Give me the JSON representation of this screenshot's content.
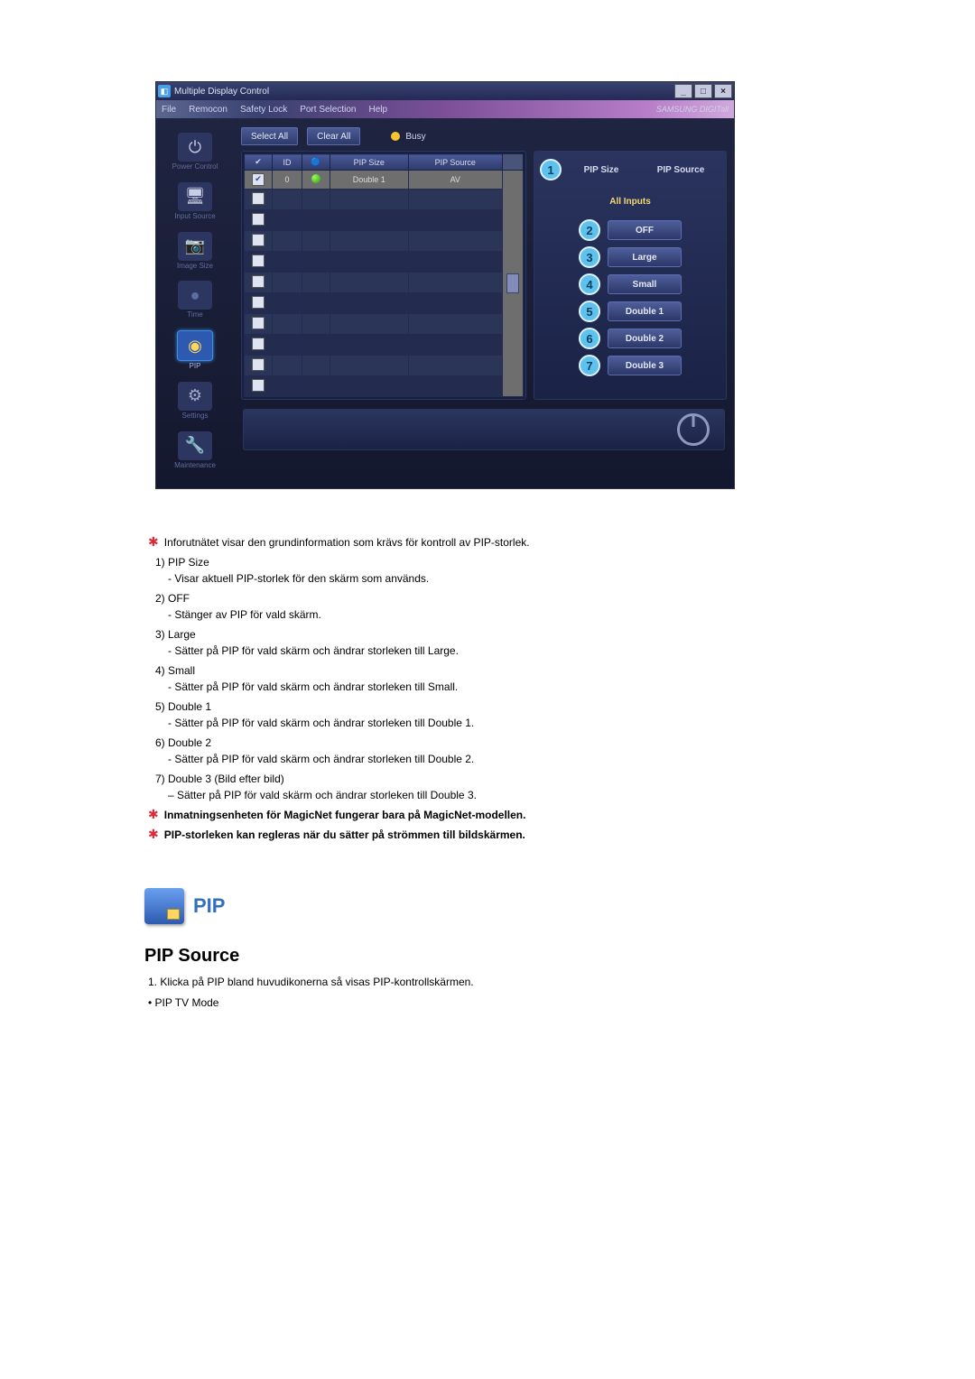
{
  "window": {
    "title": "Multiple Display Control",
    "menu": [
      "File",
      "Remocon",
      "Safety Lock",
      "Port Selection",
      "Help"
    ],
    "brand": "SAMSUNG DIGITall"
  },
  "sidebar": {
    "items": [
      {
        "label": "Power Control",
        "glyph": "⏻",
        "glyph_color": "#c6cde4",
        "bg": "#2d3660",
        "active": false
      },
      {
        "label": "Input Source",
        "glyph": "🖥",
        "glyph_color": "#c6cde4",
        "bg": "#2d3660",
        "active": false
      },
      {
        "label": "Image Size",
        "glyph": "📷",
        "glyph_color": "#7fb6e4",
        "bg": "#2d3660",
        "active": false
      },
      {
        "label": "Time",
        "glyph": "●",
        "glyph_color": "#5e6ea0",
        "bg": "#2d3660",
        "active": false
      },
      {
        "label": "PIP",
        "glyph": "◉",
        "glyph_color": "#ffd760",
        "bg": "#2d5ab0",
        "active": true
      },
      {
        "label": "Settings",
        "glyph": "⚙",
        "glyph_color": "#a0aacc",
        "bg": "#2d3660",
        "active": false
      },
      {
        "label": "Maintenance",
        "glyph": "🔧",
        "glyph_color": "#a0aacc",
        "bg": "#2d3660",
        "active": false
      }
    ]
  },
  "toolbar": {
    "select_all": "Select All",
    "clear_all": "Clear All",
    "busy_label": "Busy",
    "busy_color": "#f5c430"
  },
  "grid": {
    "headers": {
      "check": "✔",
      "id": "ID",
      "status": "",
      "pip_size": "PIP Size",
      "pip_source": "PIP Source"
    },
    "row": {
      "checked": true,
      "id": "0",
      "status_dot": true,
      "pip_size": "Double 1",
      "pip_source": "AV"
    },
    "empty_rows": 10
  },
  "right_panel": {
    "header": {
      "badge": "1",
      "left_label": "PIP Size",
      "right_label": "PIP Source"
    },
    "all_inputs": "All Inputs",
    "options": [
      {
        "badge": "2",
        "label": "OFF"
      },
      {
        "badge": "3",
        "label": "Large"
      },
      {
        "badge": "4",
        "label": "Small"
      },
      {
        "badge": "5",
        "label": "Double 1"
      },
      {
        "badge": "6",
        "label": "Double 2"
      },
      {
        "badge": "7",
        "label": "Double 3"
      }
    ]
  },
  "notes": {
    "intro": "Inforutnätet visar den grundinformation som krävs för kontroll av PIP-storlek.",
    "list": [
      {
        "n": "1)",
        "title": "PIP Size",
        "body": "- Visar aktuell PIP-storlek för den skärm som används."
      },
      {
        "n": "2)",
        "title": "OFF",
        "body": "- Stänger av PIP för vald skärm."
      },
      {
        "n": "3)",
        "title": "Large",
        "body": "- Sätter på PIP för vald skärm och ändrar storleken till Large."
      },
      {
        "n": "4)",
        "title": "Small",
        "body": "- Sätter på PIP för vald skärm och ändrar storleken till Small."
      },
      {
        "n": "5)",
        "title": "Double 1",
        "body": "- Sätter på PIP för vald skärm och ändrar storleken till Double 1."
      },
      {
        "n": "6)",
        "title": "Double 2",
        "body": "- Sätter på PIP för vald skärm och ändrar storleken till Double 2."
      },
      {
        "n": "7)",
        "title": "Double 3 (Bild efter bild)",
        "body": "– Sätter på PIP för vald skärm och ändrar storleken till Double 3."
      }
    ],
    "bold1": "Inmatningsenheten för MagicNet fungerar bara på MagicNet-modellen.",
    "bold2": "PIP-storleken kan regleras när du sätter på strömmen till bildskärmen."
  },
  "section": {
    "pip_label": "PIP",
    "sub_heading": "PIP Source",
    "line1": "1.  Klicka på PIP bland huvudikonerna så visas PIP-kontrollskärmen.",
    "line2": "• PIP TV Mode"
  }
}
